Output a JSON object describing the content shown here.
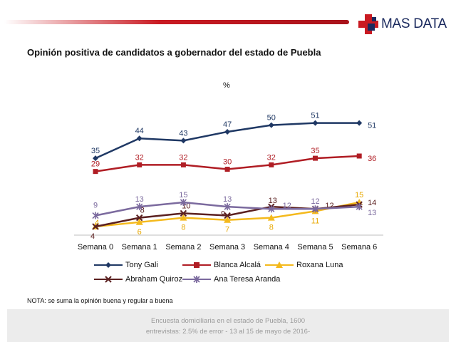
{
  "brand": {
    "name": "MAS DATA",
    "bar_color": "#c91a22",
    "text_color": "#1b2a5e"
  },
  "chart_data": {
    "type": "line",
    "title": "Opinión positiva de candidatos a gobernador del estado de Puebla",
    "unit": "%",
    "categories": [
      "Semana 0",
      "Semana 1",
      "Semana 2",
      "Semana 3",
      "Semana 4",
      "Semana 5",
      "Semana 6"
    ],
    "series": [
      {
        "name": "Tony Gali",
        "values": [
          35,
          44,
          43,
          47,
          50,
          51,
          51
        ],
        "color": "#1f3864",
        "marker": "diamond"
      },
      {
        "name": "Blanca Alcalá",
        "values": [
          29,
          32,
          32,
          30,
          32,
          35,
          36
        ],
        "color": "#b01d24",
        "marker": "square"
      },
      {
        "name": "Roxana Luna",
        "values": [
          4,
          6,
          8,
          7,
          8,
          11,
          15
        ],
        "color": "#f4b91c",
        "marker": "triangle"
      },
      {
        "name": "Abraham Quiroz",
        "values": [
          4,
          8,
          10,
          9,
          13,
          12,
          14
        ],
        "color": "#5b2020",
        "marker": "x"
      },
      {
        "name": "Ana Teresa Aranda",
        "values": [
          9,
          13,
          15,
          13,
          12,
          12,
          13
        ],
        "color": "#7b6a9e",
        "marker": "star"
      }
    ],
    "ylim": [
      0,
      60
    ],
    "grid": false,
    "legend_position": "bottom"
  },
  "note": "NOTA: se suma la opinión buena y regular a buena",
  "footer": {
    "line1": "Encuesta domiciliaria en el estado de Puebla, 1600",
    "line2": "entrevistas: 2.5% de error - 13 al 15 de mayo de 2016-"
  }
}
